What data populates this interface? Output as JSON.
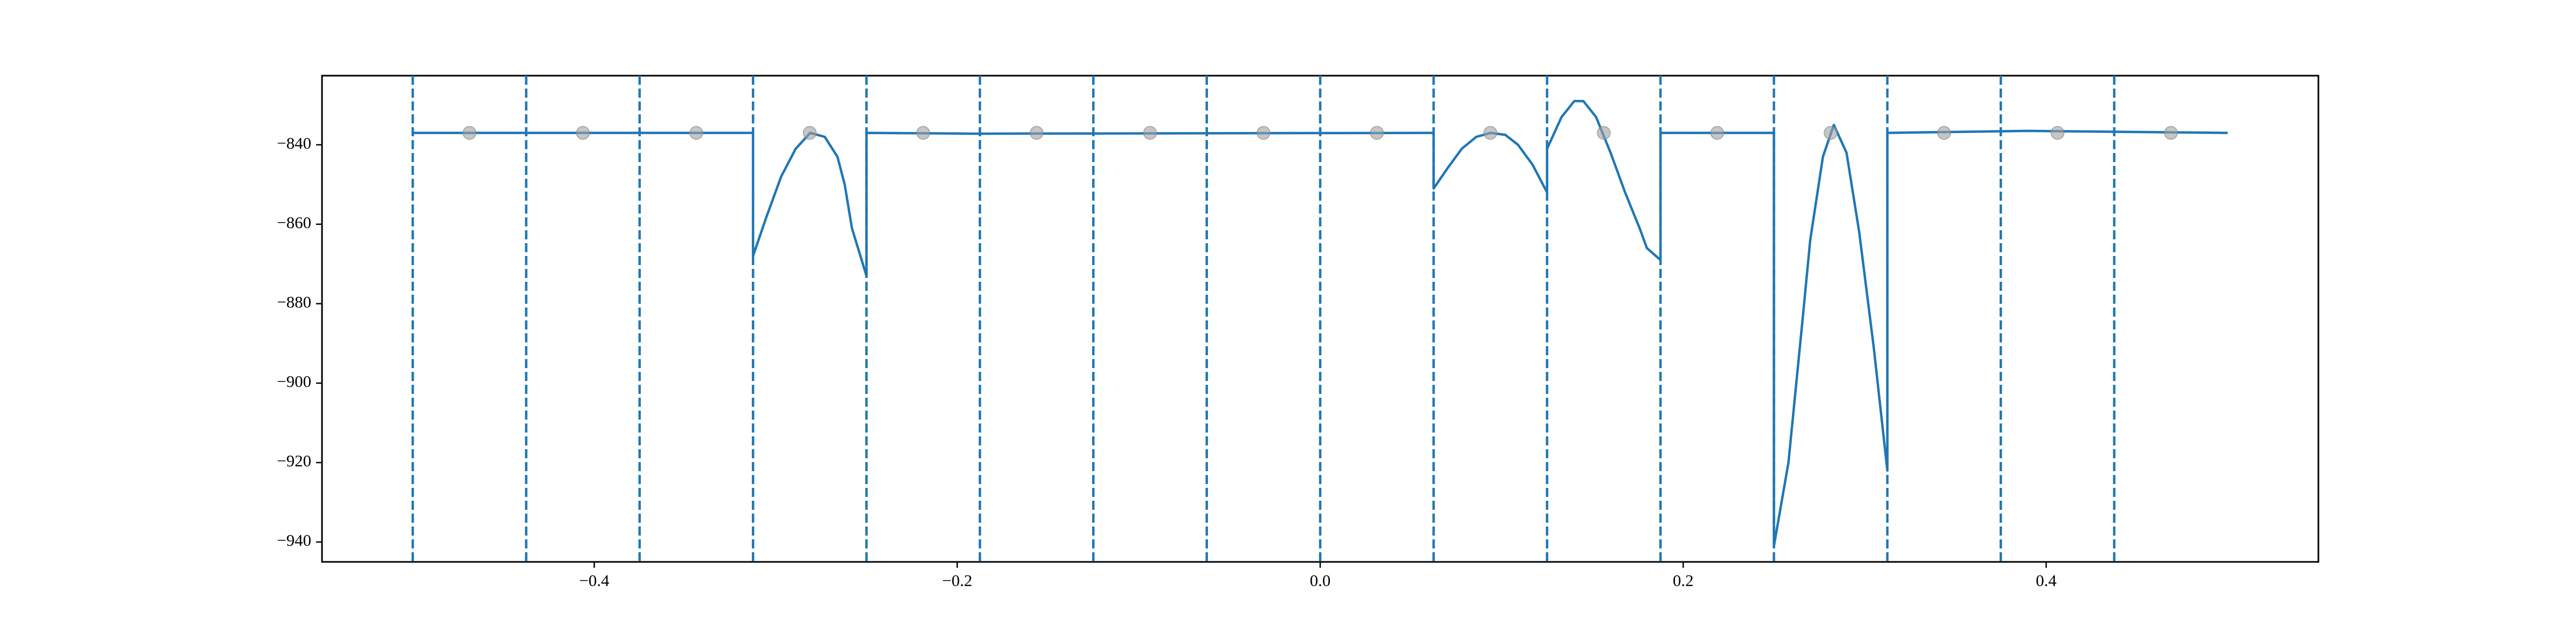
{
  "chart_data": {
    "type": "line",
    "xlim": [
      -0.55,
      0.55
    ],
    "ylim": [
      -945,
      -822.6
    ],
    "xticks": [
      {
        "value": -0.4,
        "label": "−0.4"
      },
      {
        "value": -0.2,
        "label": "−0.2"
      },
      {
        "value": 0,
        "label": "0.0"
      },
      0.2,
      0.4
    ],
    "yticks": [
      {
        "value": -840,
        "label": "−840"
      },
      {
        "value": -860,
        "label": "−860"
      },
      {
        "value": -880,
        "label": "−880"
      },
      {
        "value": -900,
        "label": "−900"
      },
      {
        "value": -920,
        "label": "−920"
      },
      {
        "value": -940,
        "label": "−940"
      }
    ],
    "series": [
      {
        "color": "#1f77b4",
        "x": [
          -0.5,
          -0.3125,
          -0.3125,
          -0.305,
          -0.297,
          -0.289,
          -0.281,
          -0.273,
          -0.266,
          -0.262,
          -0.258,
          -0.25,
          -0.25,
          -0.19,
          0.0625,
          0.0625,
          0.07,
          0.078,
          0.086,
          0.094,
          0.102,
          0.109,
          0.117,
          0.125,
          0.125,
          0.133,
          0.14,
          0.145,
          0.152,
          0.16,
          0.168,
          0.176,
          0.18,
          0.1875,
          0.1875,
          0.25,
          0.25,
          0.258,
          0.266,
          0.27,
          0.277,
          0.283,
          0.29,
          0.297,
          0.305,
          0.3125,
          0.3125,
          0.39,
          0.5
        ],
        "values": [
          -837,
          -837,
          -868,
          -858,
          -848,
          -841,
          -837,
          -838,
          -843,
          -850,
          -861,
          -873,
          -837,
          -837.2,
          -837,
          -851,
          -846,
          -841,
          -838,
          -837,
          -837.5,
          -840,
          -845,
          -852,
          -841,
          -833,
          -829,
          -829,
          -833,
          -842,
          -852,
          -861,
          -866,
          -869,
          -837,
          -837,
          -941,
          -920,
          -883,
          -864,
          -843,
          -835,
          -842,
          -862,
          -891,
          -922,
          -837,
          -836.5,
          -837
        ]
      }
    ],
    "vlines": {
      "color": "#1f77b4",
      "x": [
        -0.5,
        -0.4375,
        -0.375,
        -0.3125,
        -0.25,
        -0.1875,
        -0.125,
        -0.0625,
        0,
        0.0625,
        0.125,
        0.1875,
        0.25,
        0.3125,
        0.375,
        0.4375
      ]
    },
    "markers": {
      "color": "#a0a0a0",
      "x": [
        -0.46875,
        -0.40625,
        -0.34375,
        -0.28125,
        -0.21875,
        -0.15625,
        -0.09375,
        -0.03125,
        0.03125,
        0.09375,
        0.15625,
        0.21875,
        0.28125,
        0.34375,
        0.40625,
        0.46875
      ],
      "values": [
        -837,
        -837,
        -837,
        -837,
        -837,
        -837,
        -837,
        -837,
        -837,
        -837,
        -837,
        -837,
        -837,
        -837,
        -837,
        -837
      ]
    }
  }
}
